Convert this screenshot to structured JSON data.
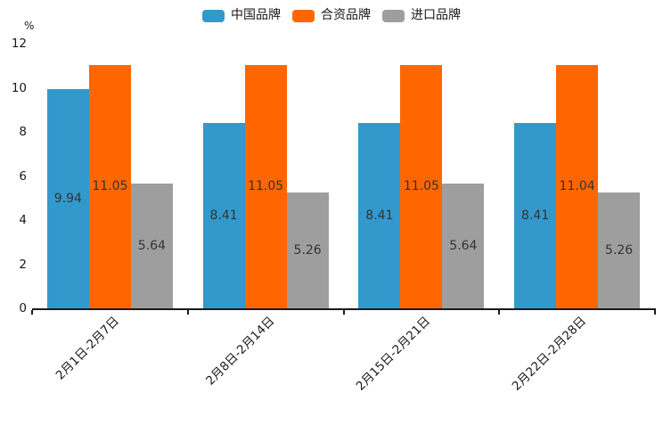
{
  "chart_data": {
    "type": "bar",
    "title": "",
    "xlabel": "",
    "ylabel": "%",
    "categories": [
      "2月1日-2月7日",
      "2月8日-2月14日",
      "2月15日-2月21日",
      "2月22日-2月28日"
    ],
    "series": [
      {
        "name": "中国品牌",
        "color": "#3399CC",
        "values": [
          9.94,
          8.41,
          8.41,
          8.41
        ]
      },
      {
        "name": "合资品牌",
        "color": "#FF6600",
        "values": [
          11.05,
          11.05,
          11.05,
          11.04
        ]
      },
      {
        "name": "进口品牌",
        "color": "#9E9E9E",
        "values": [
          5.64,
          5.26,
          5.64,
          5.26
        ]
      }
    ],
    "ylim": [
      0,
      12
    ],
    "yticks": [
      0,
      2,
      4,
      6,
      8,
      10,
      12
    ],
    "legend_position": "top-center",
    "grid": false,
    "bar_value_labels": true,
    "x_tick_rotation": 45
  },
  "colors": {
    "axis": "#1a1a1a",
    "bar_label_text": "#333333",
    "background": "#ffffff"
  }
}
